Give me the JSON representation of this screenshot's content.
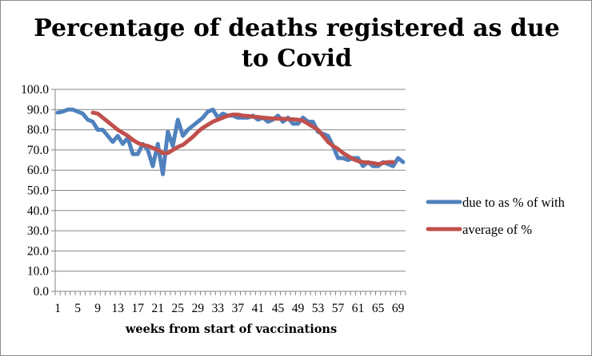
{
  "chart_data": {
    "type": "line",
    "title_lines": [
      "Percentage of deaths registered as due",
      "to Covid"
    ],
    "xlabel": "weeks from start of vaccinations",
    "ylabel": "",
    "ylim": [
      0,
      100
    ],
    "xlim": [
      1,
      70
    ],
    "grid": true,
    "legend_position": "right",
    "y_ticks": [
      "0.0",
      "10.0",
      "20.0",
      "30.0",
      "40.0",
      "50.0",
      "60.0",
      "70.0",
      "80.0",
      "90.0",
      "100.0"
    ],
    "x_ticks": [
      1,
      5,
      9,
      13,
      17,
      21,
      25,
      29,
      33,
      37,
      41,
      45,
      49,
      53,
      57,
      61,
      65,
      69
    ],
    "series": [
      {
        "name": "due to as % of with",
        "color": "#4f81bd",
        "x_start": 1,
        "values": [
          88.5,
          89,
          90,
          90,
          89,
          88,
          85,
          84,
          80,
          80,
          77,
          74,
          77,
          73,
          76,
          68,
          68,
          73,
          70,
          62,
          73,
          58,
          79,
          72,
          85,
          77,
          80,
          82,
          84,
          86,
          89,
          90,
          86,
          88,
          87,
          87,
          86,
          86,
          86,
          87,
          85,
          86,
          84,
          85,
          87,
          84,
          86,
          83,
          83,
          86,
          84,
          84,
          79,
          78,
          77,
          72,
          66,
          66,
          65,
          66,
          66,
          62,
          64,
          62,
          62,
          64,
          63,
          62,
          66,
          64
        ]
      },
      {
        "name": "average of %",
        "color": "#c0504d",
        "x_start": 8,
        "values": [
          88.5,
          88,
          86,
          84,
          82,
          80,
          78.5,
          77,
          75,
          73.5,
          72.5,
          72,
          71,
          70,
          68.5,
          68.5,
          70,
          71.5,
          72.5,
          74.5,
          76.5,
          79,
          81,
          82.5,
          84,
          85,
          86,
          87,
          87.5,
          87.5,
          87,
          86.8,
          86.5,
          86.3,
          86,
          85.8,
          85.6,
          85.5,
          85.5,
          85.3,
          85.2,
          85,
          84.5,
          83,
          81.5,
          80,
          77,
          74,
          72,
          70.5,
          68.5,
          67,
          65.5,
          64.5,
          64,
          63.8,
          63.5,
          63,
          63.5,
          64,
          64
        ]
      }
    ]
  },
  "colors": {
    "gridline": "#868686",
    "axis": "#868686",
    "border": "#8c8c8c"
  }
}
